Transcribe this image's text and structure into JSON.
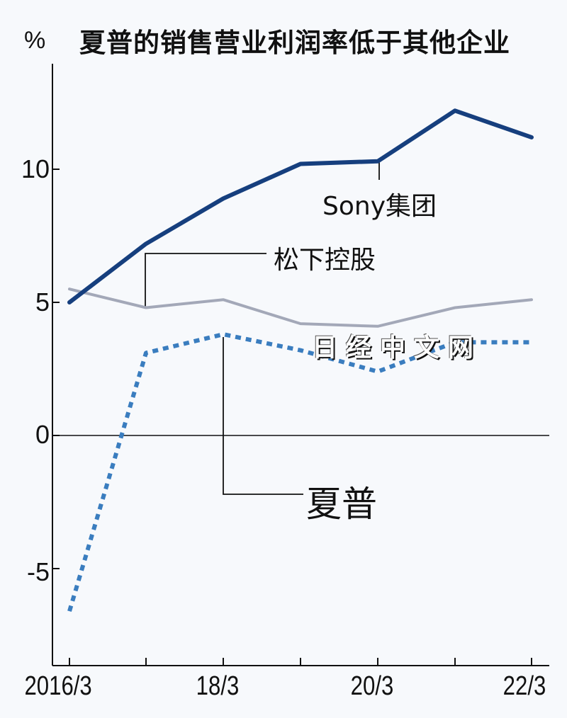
{
  "title": "夏普的销售营业利润率低于其他企业",
  "unit": "%",
  "watermark": "日经中文网",
  "y_ticks": [
    "10",
    "5",
    "0",
    "-5"
  ],
  "x_ticks": [
    "2016/3",
    "18/3",
    "20/3",
    "22/3"
  ],
  "labels": {
    "sony": "Sony集团",
    "panasonic": "松下控股",
    "sharp": "夏普"
  },
  "colors": {
    "sony": "#163f7e",
    "panasonic": "#a3a8b8",
    "sharp": "#3a7dbf"
  },
  "chart_data": {
    "type": "line",
    "title": "夏普的销售营业利润率低于其他企业",
    "xlabel": "",
    "ylabel": "%",
    "x": [
      "2016/3",
      "17/3",
      "18/3",
      "19/3",
      "20/3",
      "21/3",
      "22/3"
    ],
    "x_tick_labels": [
      "2016/3",
      "18/3",
      "20/3",
      "22/3"
    ],
    "ylim": [
      -8.5,
      14
    ],
    "y_ticks": [
      -5,
      0,
      5,
      10
    ],
    "grid": false,
    "legend": "inline annotations",
    "series": [
      {
        "name": "Sony集团",
        "style": "solid-thick",
        "values": [
          5.0,
          7.2,
          8.9,
          10.2,
          10.3,
          12.2,
          11.2
        ]
      },
      {
        "name": "松下控股",
        "style": "solid-thin",
        "values": [
          5.5,
          4.8,
          5.1,
          4.2,
          4.1,
          4.8,
          5.1
        ]
      },
      {
        "name": "夏普",
        "style": "dotted",
        "values": [
          -6.6,
          3.1,
          3.8,
          3.2,
          2.4,
          3.5,
          3.5
        ]
      }
    ]
  }
}
